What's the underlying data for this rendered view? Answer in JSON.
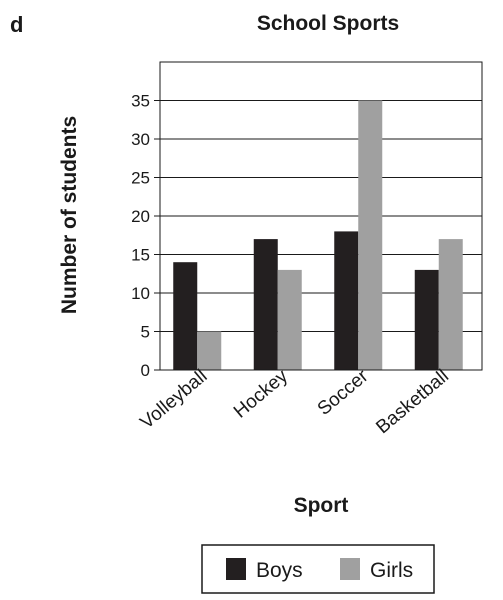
{
  "panel_label": "d",
  "chart_data": {
    "type": "bar",
    "title": "School Sports",
    "xlabel": "Sport",
    "ylabel": "Number of students",
    "categories": [
      "Volleyball",
      "Hockey",
      "Soccer",
      "Basketball"
    ],
    "series": [
      {
        "name": "Boys",
        "values": [
          14,
          17,
          18,
          13
        ],
        "color": "#231f20"
      },
      {
        "name": "Girls",
        "values": [
          5,
          13,
          35,
          17
        ],
        "color": "#a0a0a0"
      }
    ],
    "ylim": [
      0,
      40
    ],
    "yticks": [
      0,
      5,
      10,
      15,
      20,
      25,
      30,
      35
    ],
    "grid": true,
    "legend_position": "bottom"
  }
}
